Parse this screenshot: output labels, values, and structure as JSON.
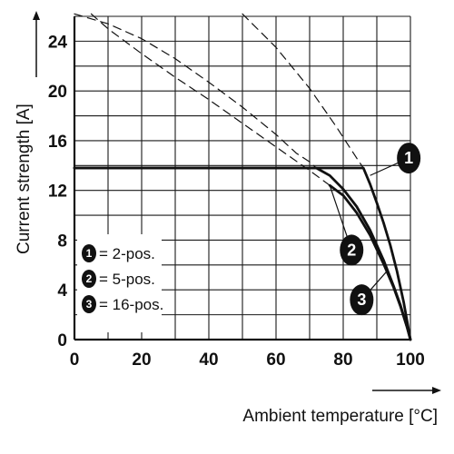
{
  "chart_data": {
    "type": "line",
    "title": "",
    "xlabel": "Ambient temperature [°C]",
    "ylabel": "Current strength [A]",
    "xlim": [
      0,
      100
    ],
    "ylim": [
      0,
      26
    ],
    "x_ticks": [
      "0",
      "20",
      "40",
      "60",
      "80",
      "100"
    ],
    "y_ticks": [
      "0",
      "4",
      "8",
      "12",
      "16",
      "20",
      "24"
    ],
    "grid": true,
    "legend": {
      "placement": "bottom-left",
      "entries": [
        {
          "id": "1",
          "label": "= 2-pos."
        },
        {
          "id": "2",
          "label": "= 5-pos."
        },
        {
          "id": "3",
          "label": "= 16-pos."
        }
      ]
    },
    "series": [
      {
        "id": "1",
        "style": "solid",
        "x": [
          0,
          86,
          88,
          90,
          92,
          94,
          96,
          98,
          99,
          100
        ],
        "y": [
          13.8,
          13.8,
          12.5,
          11,
          9.4,
          7.6,
          5.5,
          3,
          1.5,
          0
        ]
      },
      {
        "id": "2",
        "style": "solid",
        "x": [
          0,
          72,
          76,
          80,
          84,
          88,
          92,
          95,
          97,
          99,
          100
        ],
        "y": [
          13.8,
          13.8,
          13.2,
          12.1,
          10.7,
          8.8,
          6.4,
          4.3,
          2.8,
          1.0,
          0
        ]
      },
      {
        "id": "3",
        "style": "solid",
        "x": [
          76,
          80,
          84,
          88,
          92,
          95,
          97,
          99,
          100
        ],
        "y": [
          12.4,
          11.6,
          10.2,
          8.4,
          6.1,
          4.2,
          2.7,
          1.0,
          0
        ]
      },
      {
        "id": "1-extension",
        "style": "dashed",
        "x": [
          50,
          60,
          70,
          78,
          84,
          86
        ],
        "y": [
          26.2,
          23.5,
          20.2,
          17.1,
          14.6,
          13.8
        ]
      },
      {
        "id": "2-extension",
        "style": "dashed",
        "x": [
          0,
          10,
          20,
          30,
          40,
          50,
          60,
          66,
          70,
          72
        ],
        "y": [
          26.2,
          25.4,
          24.2,
          22.6,
          20.7,
          18.7,
          16.5,
          15,
          14.3,
          13.8
        ]
      },
      {
        "id": "3-extension",
        "style": "dashed",
        "x": [
          5,
          10,
          20,
          30,
          40,
          50,
          60,
          70,
          76
        ],
        "y": [
          26.2,
          25,
          23,
          21.1,
          19.3,
          17.4,
          15.5,
          13.6,
          12.4
        ]
      }
    ],
    "callouts": [
      {
        "id": "1",
        "x": 99.5,
        "y": 14.6
      },
      {
        "id": "2",
        "x": 82.5,
        "y": 7.2
      },
      {
        "id": "3",
        "x": 85.5,
        "y": 3.2
      }
    ],
    "colors": {
      "line": "#111111",
      "grid": "#1a1a1a",
      "badge": "#111111",
      "badge_text": "#ffffff"
    }
  }
}
